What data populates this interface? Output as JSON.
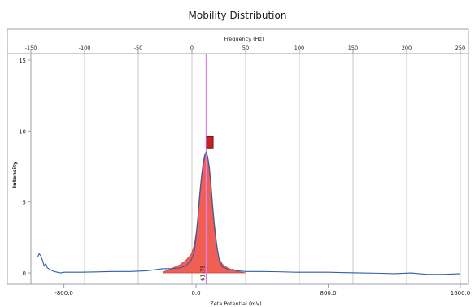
{
  "chart_data": {
    "type": "line",
    "title": "Mobility Distribution",
    "xlabel": "Zeta Potential (mV)",
    "ylabel": "Intensity",
    "top_axis_label": "Frequency (Hz)",
    "x_ticks": [
      "-800.0",
      "0.0",
      "800.0",
      "1600.0"
    ],
    "x_tick_values": [
      -800,
      0,
      800,
      1600
    ],
    "top_ticks": [
      "-150",
      "-100",
      "-50",
      "0",
      "50",
      "100",
      "150",
      "200",
      "250"
    ],
    "top_tick_values": [
      -150,
      -100,
      -50,
      0,
      50,
      100,
      150,
      200,
      250
    ],
    "y_ticks": [
      "0",
      "5",
      "10",
      "15"
    ],
    "y_tick_values": [
      0,
      5,
      10,
      15
    ],
    "xlim": [
      -1000,
      1600
    ],
    "ylim": [
      -0.8,
      15
    ],
    "grid": true,
    "peak_label": "61.75",
    "peak_x": 61.75,
    "peak_marker_y": 9.2,
    "series": [
      {
        "color": "#2f5fa8",
        "x": [
          -960,
          -950,
          -940,
          -930,
          -920,
          -910,
          -900,
          -880,
          -860,
          -840,
          -820,
          -800,
          -760,
          -700,
          -600,
          -500,
          -400,
          -300,
          -200,
          -150,
          -100,
          -60,
          -30,
          -10,
          0,
          10,
          20,
          30,
          40,
          50,
          55,
          61.75,
          70,
          80,
          90,
          100,
          110,
          125,
          140,
          160,
          185,
          200,
          220,
          250,
          300,
          400,
          500,
          600,
          700,
          800,
          900,
          1000,
          1100,
          1200,
          1300,
          1400,
          1500,
          1600
        ],
        "values": [
          1.1,
          1.35,
          1.2,
          0.9,
          0.5,
          0.65,
          0.35,
          0.2,
          0.1,
          0.05,
          0.0,
          0.05,
          0.05,
          0.05,
          0.07,
          0.1,
          0.1,
          0.15,
          0.3,
          0.3,
          0.35,
          0.5,
          0.9,
          1.5,
          2.5,
          3.8,
          5.3,
          6.5,
          7.5,
          8.2,
          8.4,
          8.5,
          8.2,
          7.5,
          6.3,
          4.8,
          3.5,
          2.0,
          0.9,
          0.4,
          0.3,
          0.2,
          0.25,
          0.15,
          0.1,
          0.1,
          0.08,
          0.05,
          0.05,
          0.05,
          0.02,
          0.0,
          -0.02,
          -0.05,
          0.0,
          -0.1,
          -0.1,
          -0.05
        ]
      }
    ],
    "fill": {
      "color": "#f0574a",
      "edge_color": "#c7362c",
      "x": [
        -200,
        -150,
        -100,
        -60,
        -30,
        -10,
        0,
        10,
        20,
        30,
        40,
        50,
        55,
        61.75,
        70,
        80,
        90,
        100,
        110,
        125,
        140,
        160,
        185,
        200,
        220,
        250,
        300
      ],
      "values": [
        0.05,
        0.3,
        0.55,
        0.9,
        1.3,
        2.0,
        2.8,
        3.8,
        5.0,
        6.2,
        7.3,
        8.0,
        8.3,
        8.5,
        8.2,
        7.2,
        6.0,
        4.5,
        3.2,
        1.8,
        1.0,
        0.6,
        0.4,
        0.3,
        0.2,
        0.1,
        0.0
      ]
    },
    "colors": {
      "grid": "#c8c8c8",
      "axis": "#9aa0a8",
      "peak_line": "#e080e8",
      "marker": "#cc1f1f",
      "text": "#1a1a1a"
    }
  }
}
